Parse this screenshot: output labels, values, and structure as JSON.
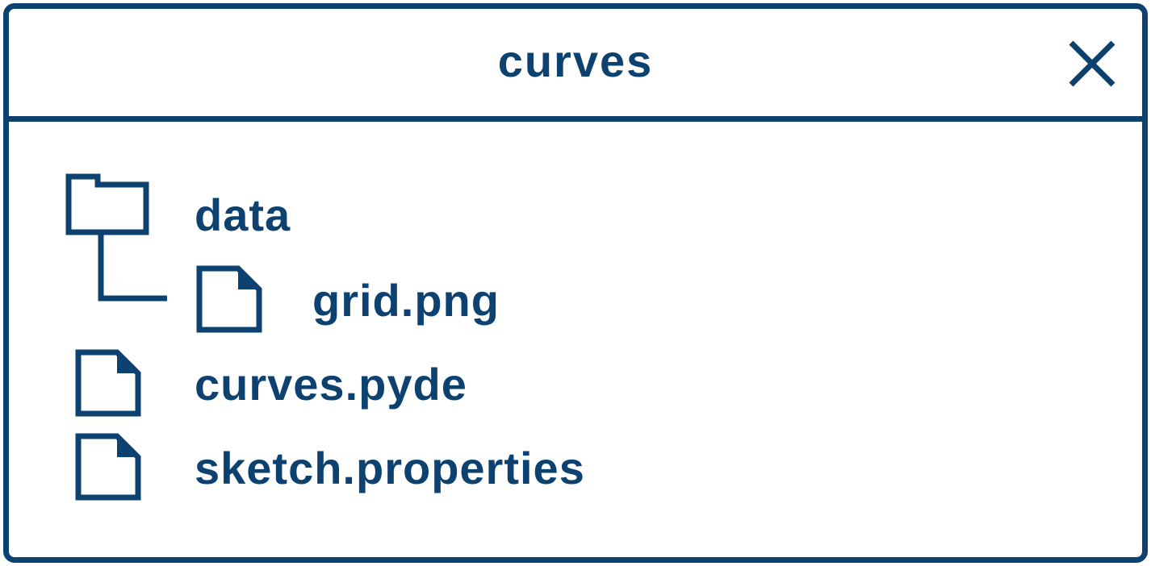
{
  "window": {
    "title": "curves",
    "close_icon": "close-icon",
    "accent_color": "#0d4270"
  },
  "tree": {
    "items": [
      {
        "label": "data",
        "icon": "folder-icon",
        "depth": 0
      },
      {
        "label": "grid.png",
        "icon": "file-icon",
        "depth": 1
      },
      {
        "label": "curves.pyde",
        "icon": "file-icon",
        "depth": 0
      },
      {
        "label": "sketch.properties",
        "icon": "file-icon",
        "depth": 0
      }
    ]
  }
}
